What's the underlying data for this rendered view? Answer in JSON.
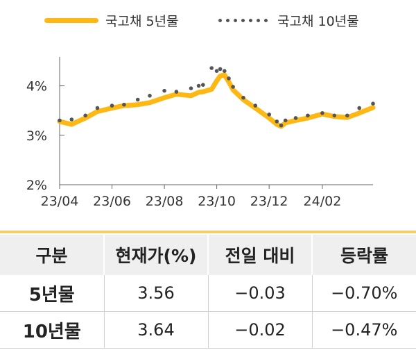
{
  "legend": {
    "series_5y": "국고채 5년물",
    "series_10y": "국고채 10년물"
  },
  "colors": {
    "series_5y": "#FDB813",
    "series_10y": "#555555",
    "table_rule": "#F3CE6B",
    "header_bg": "#EFEFEF"
  },
  "chart_data": {
    "type": "line",
    "title": "",
    "xlabel": "",
    "ylabel": "",
    "ylim": [
      2,
      4.5
    ],
    "y_ticks": [
      "2%",
      "3%",
      "4%"
    ],
    "x_ticks": [
      "23/04",
      "23/06",
      "23/08",
      "23/10",
      "23/12",
      "24/02"
    ],
    "grid": false,
    "legend_position": "top",
    "x": [
      "2023-04-01",
      "2023-04-15",
      "2023-05-01",
      "2023-05-15",
      "2023-06-01",
      "2023-06-15",
      "2023-07-01",
      "2023-07-15",
      "2023-08-01",
      "2023-08-15",
      "2023-09-01",
      "2023-09-10",
      "2023-09-15",
      "2023-09-25",
      "2023-10-01",
      "2023-10-05",
      "2023-10-10",
      "2023-10-15",
      "2023-10-20",
      "2023-11-01",
      "2023-11-15",
      "2023-12-01",
      "2023-12-10",
      "2023-12-15",
      "2023-12-20",
      "2024-01-01",
      "2024-01-15",
      "2024-02-01",
      "2024-02-15",
      "2024-03-01",
      "2024-03-15",
      "2024-03-31"
    ],
    "series": [
      {
        "name": "국고채 5년물",
        "style": "line",
        "values": [
          3.28,
          3.22,
          3.35,
          3.48,
          3.55,
          3.6,
          3.62,
          3.66,
          3.76,
          3.83,
          3.8,
          3.87,
          3.88,
          3.93,
          4.1,
          4.2,
          4.22,
          4.08,
          3.92,
          3.72,
          3.55,
          3.35,
          3.22,
          3.18,
          3.25,
          3.3,
          3.35,
          3.43,
          3.38,
          3.36,
          3.45,
          3.56
        ]
      },
      {
        "name": "국고채 10년물",
        "style": "dots",
        "values": [
          3.3,
          3.32,
          3.4,
          3.55,
          3.6,
          3.62,
          3.72,
          3.8,
          3.9,
          3.88,
          3.95,
          4.0,
          4.02,
          4.36,
          4.3,
          4.34,
          4.3,
          4.15,
          3.98,
          3.76,
          3.6,
          3.42,
          3.28,
          3.2,
          3.3,
          3.35,
          3.4,
          3.45,
          3.4,
          3.4,
          3.55,
          3.64
        ]
      }
    ]
  },
  "table": {
    "headers": [
      "구분",
      "현재가(%)",
      "전일 대비",
      "등락률"
    ],
    "rows": [
      [
        "5년물",
        "3.56",
        "−0.03",
        "−0.70%"
      ],
      [
        "10년물",
        "3.64",
        "−0.02",
        "−0.47%"
      ]
    ]
  }
}
